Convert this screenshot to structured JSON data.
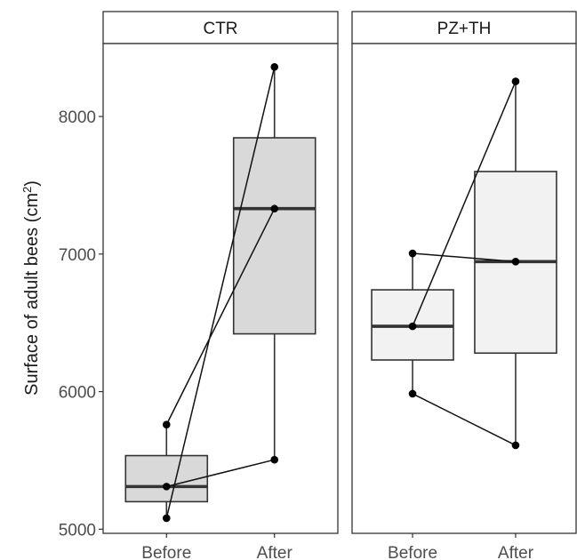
{
  "chart_data": {
    "type": "box",
    "ylabel": "Surface of adult bees (cm",
    "ylabel_superscript": "2",
    "ylabel_close": ")",
    "xlabel": "",
    "ylim": [
      4970,
      8530
    ],
    "yticks": [
      5000,
      6000,
      7000,
      8000
    ],
    "categories": [
      "Before",
      "After"
    ],
    "panels": [
      {
        "name": "CTR",
        "fill": "#d9d9d9",
        "boxes": [
          {
            "category": "Before",
            "min": 5080,
            "q1": 5200,
            "median": 5310,
            "q3": 5535,
            "max": 5760
          },
          {
            "category": "After",
            "min": 5505,
            "q1": 6420,
            "median": 7330,
            "q3": 7845,
            "max": 8360
          }
        ],
        "pairs": [
          {
            "before": 5760,
            "after": 7330
          },
          {
            "before": 5310,
            "after": 5505
          },
          {
            "before": 5080,
            "after": 8360
          }
        ]
      },
      {
        "name": "PZ+TH",
        "fill": "#f2f2f2",
        "boxes": [
          {
            "category": "Before",
            "min": 5985,
            "q1": 6230,
            "median": 6475,
            "q3": 6740,
            "max": 7005
          },
          {
            "category": "After",
            "min": 5610,
            "q1": 6280,
            "median": 6945,
            "q3": 7600,
            "max": 8255
          }
        ],
        "pairs": [
          {
            "before": 7005,
            "after": 6945
          },
          {
            "before": 6475,
            "after": 8255
          },
          {
            "before": 5985,
            "after": 5610
          }
        ]
      }
    ],
    "grid": false,
    "legend": "none"
  }
}
